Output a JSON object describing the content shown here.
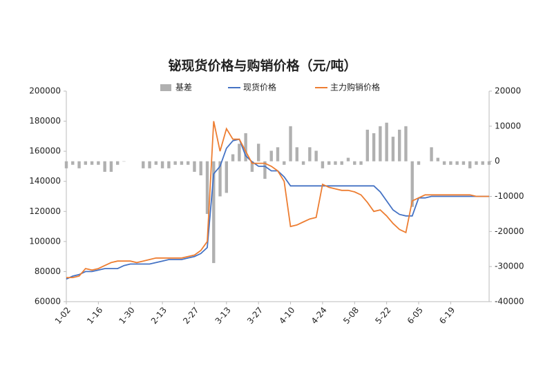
{
  "chart_data": {
    "type": "bar-line",
    "title": "铋现货价格与购销价格（元/吨）",
    "categories": [
      "1-02",
      null,
      null,
      null,
      null,
      "1-16",
      null,
      null,
      null,
      null,
      "1-30",
      null,
      null,
      null,
      null,
      "2-13",
      null,
      null,
      null,
      null,
      "2-27",
      null,
      null,
      null,
      null,
      "3-13",
      null,
      null,
      null,
      null,
      "3-27",
      null,
      null,
      null,
      null,
      "4-10",
      null,
      null,
      null,
      null,
      "4-24",
      null,
      null,
      null,
      null,
      "5-08",
      null,
      null,
      null,
      null,
      "5-22",
      null,
      null,
      null,
      null,
      "6-05",
      null,
      null,
      null,
      null,
      "6-19",
      null,
      null,
      null,
      null,
      null,
      null
    ],
    "series": [
      {
        "name": "基差",
        "type": "bar",
        "axis": "y2",
        "color": "#b0b0b0",
        "values": [
          -2000,
          -1000,
          -2000,
          -1000,
          -1000,
          -1000,
          -3000,
          -3000,
          -1000,
          0,
          null,
          null,
          -2000,
          -2000,
          -1000,
          -2000,
          -2000,
          -1000,
          -1000,
          -1000,
          -3000,
          -4000,
          -15000,
          -29000,
          -10000,
          -9000,
          2000,
          5000,
          8000,
          -3000,
          5000,
          -5000,
          3000,
          4000,
          -1000,
          10000,
          4000,
          -1000,
          4000,
          3000,
          -2000,
          -1000,
          -1000,
          -1000,
          1000,
          -1000,
          -1000,
          9000,
          8000,
          10000,
          11000,
          7000,
          9000,
          10000,
          -13000,
          -1000,
          null,
          4000,
          1000,
          -1000,
          -1000,
          -1000,
          -1000,
          -2000,
          -1000,
          -1000,
          -1000
        ]
      },
      {
        "name": "现货价格",
        "type": "line",
        "color": "#4472c4",
        "values": [
          75000,
          77000,
          78000,
          80000,
          80000,
          81000,
          82000,
          82000,
          82000,
          84000,
          85000,
          85000,
          85000,
          85000,
          86000,
          87000,
          88000,
          88000,
          88000,
          89000,
          90000,
          92000,
          96000,
          145000,
          150000,
          162000,
          167000,
          168000,
          157000,
          153000,
          150000,
          150000,
          147000,
          147000,
          143000,
          137000,
          137000,
          137000,
          137000,
          137000,
          137000,
          137000,
          137000,
          137000,
          137000,
          137000,
          137000,
          137000,
          137000,
          133000,
          127000,
          121000,
          118000,
          117000,
          117000,
          129000,
          129000,
          130000,
          130000,
          130000,
          130000,
          130000,
          130000,
          130000,
          130000,
          130000,
          130000
        ]
      },
      {
        "name": "主力购销价格",
        "type": "line",
        "color": "#ed7d31",
        "values": [
          76000,
          76000,
          77000,
          82000,
          81000,
          82000,
          84000,
          86000,
          87000,
          87000,
          87000,
          86000,
          87000,
          88000,
          89000,
          89000,
          89000,
          89000,
          89000,
          90000,
          91000,
          94000,
          100000,
          180000,
          160000,
          175000,
          168000,
          168000,
          160000,
          152000,
          152000,
          152000,
          150000,
          147000,
          140000,
          110000,
          111000,
          113000,
          115000,
          116000,
          138000,
          136000,
          135000,
          134000,
          134000,
          133000,
          131000,
          126000,
          120000,
          121000,
          117000,
          112000,
          108000,
          106000,
          127000,
          129000,
          131000,
          131000,
          131000,
          131000,
          131000,
          131000,
          131000,
          131000,
          130000,
          130000,
          130000
        ]
      }
    ],
    "ylim": [
      60000,
      200000
    ],
    "yticks": [
      60000,
      80000,
      100000,
      120000,
      140000,
      160000,
      180000,
      200000
    ],
    "y2lim": [
      -40000,
      20000
    ],
    "y2ticks": [
      -40000,
      -30000,
      -20000,
      -10000,
      0,
      10000,
      20000
    ]
  }
}
